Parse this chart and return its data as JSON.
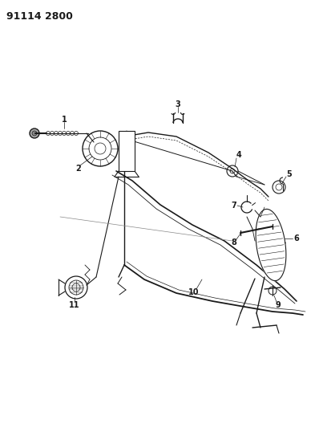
{
  "title": "91114 2800",
  "background_color": "#ffffff",
  "line_color": "#1a1a1a",
  "title_fontsize": 9,
  "title_fontweight": "bold",
  "fig_width": 3.98,
  "fig_height": 5.33,
  "dpi": 100
}
